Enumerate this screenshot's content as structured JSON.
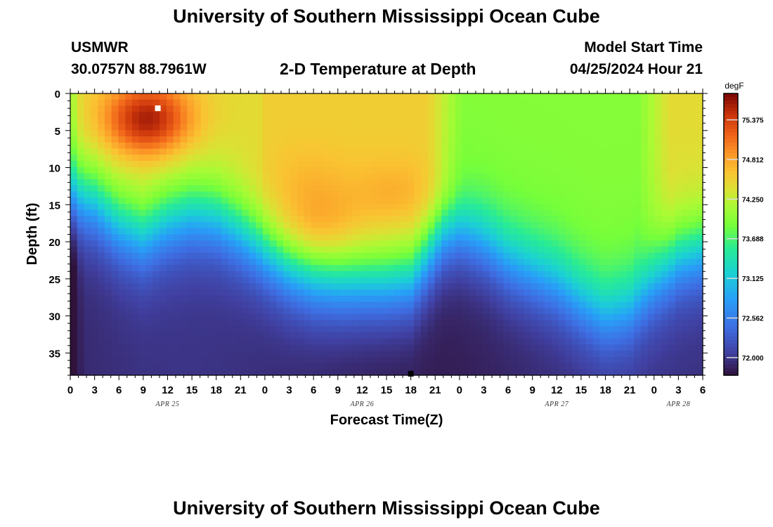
{
  "header": {
    "title": "University of Southern Mississippi Ocean Cube",
    "station": "USMWR",
    "coords": "30.0757N  88.7961W",
    "subtitle": "2-D Temperature at Depth",
    "model_label": "Model Start Time",
    "model_time": "04/25/2024 Hour 21"
  },
  "footer": {
    "title": "University of Southern Mississippi Ocean Cube"
  },
  "chart_data": {
    "type": "heatmap",
    "title": "2-D Temperature at Depth",
    "xlabel": "Forecast Time(Z)",
    "ylabel": "Depth (ft)",
    "x_range_hours": [
      0,
      78
    ],
    "y_range_ft": [
      0,
      38
    ],
    "x_ticks": [
      {
        "h": 0,
        "label": "0"
      },
      {
        "h": 3,
        "label": "3"
      },
      {
        "h": 6,
        "label": "6"
      },
      {
        "h": 9,
        "label": "9"
      },
      {
        "h": 12,
        "label": "12"
      },
      {
        "h": 15,
        "label": "15"
      },
      {
        "h": 18,
        "label": "18"
      },
      {
        "h": 21,
        "label": "21"
      },
      {
        "h": 24,
        "label": "0"
      },
      {
        "h": 27,
        "label": "3"
      },
      {
        "h": 30,
        "label": "6"
      },
      {
        "h": 33,
        "label": "9"
      },
      {
        "h": 36,
        "label": "12"
      },
      {
        "h": 39,
        "label": "15"
      },
      {
        "h": 42,
        "label": "18"
      },
      {
        "h": 45,
        "label": "21"
      },
      {
        "h": 48,
        "label": "0"
      },
      {
        "h": 51,
        "label": "3"
      },
      {
        "h": 54,
        "label": "6"
      },
      {
        "h": 57,
        "label": "9"
      },
      {
        "h": 60,
        "label": "12"
      },
      {
        "h": 63,
        "label": "15"
      },
      {
        "h": 66,
        "label": "18"
      },
      {
        "h": 69,
        "label": "21"
      },
      {
        "h": 72,
        "label": "0"
      },
      {
        "h": 75,
        "label": "3"
      },
      {
        "h": 78,
        "label": "6"
      }
    ],
    "y_ticks": [
      0,
      5,
      10,
      15,
      20,
      25,
      30,
      35
    ],
    "date_labels": [
      {
        "h": 12,
        "label": "APR 25"
      },
      {
        "h": 36,
        "label": "APR 26"
      },
      {
        "h": 60,
        "label": "APR 27"
      },
      {
        "h": 75,
        "label": "APR 28"
      }
    ],
    "colorbar": {
      "units": "degF",
      "min": 71.75,
      "max": 75.75,
      "ticks": [
        "72.000",
        "72.562",
        "73.125",
        "73.688",
        "74.250",
        "74.812",
        "75.375"
      ]
    },
    "thermocline_ft": [
      {
        "h": 0,
        "d": 13.5
      },
      {
        "h": 3,
        "d": 14.5
      },
      {
        "h": 6,
        "d": 17.5
      },
      {
        "h": 9,
        "d": 19
      },
      {
        "h": 12,
        "d": 17
      },
      {
        "h": 15,
        "d": 16
      },
      {
        "h": 18,
        "d": 16.5
      },
      {
        "h": 21,
        "d": 18.5
      },
      {
        "h": 24,
        "d": 21
      },
      {
        "h": 27,
        "d": 23.5
      },
      {
        "h": 30,
        "d": 25
      },
      {
        "h": 33,
        "d": 25.5
      },
      {
        "h": 36,
        "d": 25.5
      },
      {
        "h": 39,
        "d": 25.5
      },
      {
        "h": 42,
        "d": 25
      },
      {
        "h": 44,
        "d": 22
      },
      {
        "h": 46,
        "d": 19
      },
      {
        "h": 48,
        "d": 18.5
      },
      {
        "h": 51,
        "d": 20
      },
      {
        "h": 54,
        "d": 22.5
      },
      {
        "h": 57,
        "d": 24
      },
      {
        "h": 60,
        "d": 25.5
      },
      {
        "h": 63,
        "d": 28
      },
      {
        "h": 66,
        "d": 30
      },
      {
        "h": 69,
        "d": 29
      },
      {
        "h": 72,
        "d": 25
      },
      {
        "h": 75,
        "d": 22
      },
      {
        "h": 78,
        "d": 21
      }
    ],
    "warm_cores": [
      {
        "h": 9.5,
        "d": 3.5,
        "temp": 75.6
      },
      {
        "h": 30.5,
        "d": 18,
        "temp": 74.9
      },
      {
        "h": 40,
        "d": 14,
        "temp": 74.8
      },
      {
        "h": 29,
        "d": 12,
        "temp": 74.7
      }
    ],
    "markers": [
      {
        "h": 10.8,
        "d": 2.0,
        "color": "#ffffff"
      },
      {
        "h": 42,
        "d": 37.8,
        "color": "#000000"
      }
    ]
  }
}
